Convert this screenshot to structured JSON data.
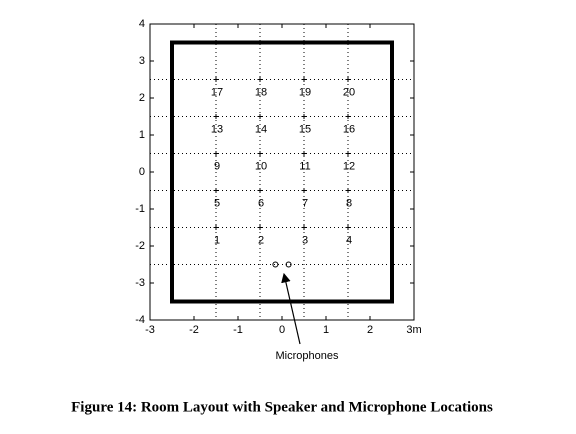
{
  "chart_data": {
    "type": "scatter",
    "caption": "Figure 14: Room Layout with Speaker and Microphone Locations",
    "xlim": [
      -3,
      3
    ],
    "ylim": [
      -4,
      4
    ],
    "xticks": [
      -3,
      -2,
      -1,
      0,
      1,
      2,
      {
        "value": 3,
        "label": "3m"
      }
    ],
    "yticks": [
      -4,
      -3,
      -2,
      -1,
      0,
      1,
      2,
      3,
      4
    ],
    "xgrid": [
      -1.5,
      -0.5,
      0.5,
      1.5
    ],
    "ygrid": [
      -2.5,
      -1.5,
      -0.5,
      0.5,
      1.5,
      2.5
    ],
    "room": {
      "x": [
        -2.5,
        2.5
      ],
      "y": [
        -3.5,
        3.5
      ]
    },
    "speakers": {
      "x": [
        -1.5,
        -0.5,
        0.5,
        1.5,
        -1.5,
        -0.5,
        0.5,
        1.5,
        -1.5,
        -0.5,
        0.5,
        1.5,
        -1.5,
        -0.5,
        0.5,
        1.5,
        -1.5,
        -0.5,
        0.5,
        1.5
      ],
      "y": [
        -1.5,
        -1.5,
        -1.5,
        -1.5,
        -0.5,
        -0.5,
        -0.5,
        -0.5,
        0.5,
        0.5,
        0.5,
        0.5,
        1.5,
        1.5,
        1.5,
        1.5,
        2.5,
        2.5,
        2.5,
        2.5
      ],
      "labels": [
        "1",
        "2",
        "3",
        "4",
        "5",
        "6",
        "7",
        "8",
        "9",
        "10",
        "11",
        "12",
        "13",
        "14",
        "15",
        "16",
        "17",
        "18",
        "19",
        "20"
      ]
    },
    "microphones": {
      "x": [
        -0.15,
        0.15
      ],
      "y": [
        -2.5,
        -2.5
      ]
    },
    "annotation": "Microphones"
  }
}
